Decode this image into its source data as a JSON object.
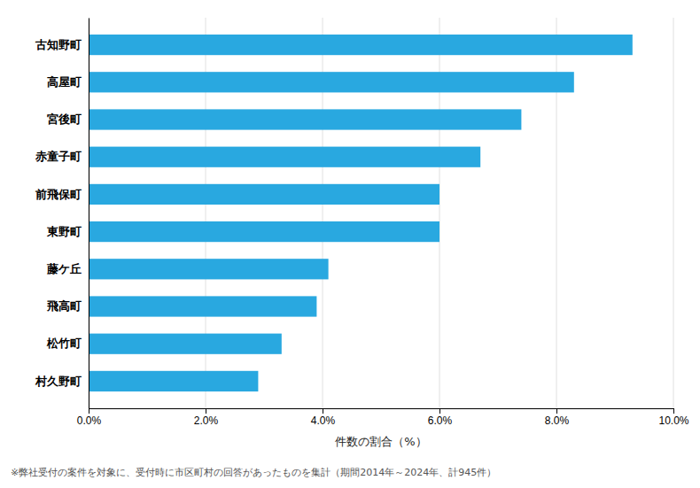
{
  "chart_data": {
    "type": "bar",
    "orientation": "horizontal",
    "categories": [
      "村久野町",
      "松竹町",
      "飛高町",
      "藤ケ丘",
      "東野町",
      "前飛保町",
      "赤童子町",
      "宮後町",
      "高屋町",
      "古知野町"
    ],
    "values": [
      2.9,
      3.3,
      3.9,
      4.1,
      6.0,
      6.0,
      6.7,
      7.4,
      8.3,
      9.3
    ],
    "color": "#29a8e0",
    "x_label": "件数の割合（%）",
    "xlim": [
      0,
      10.0
    ],
    "xticks": [
      {
        "value": 0,
        "label": "0.0%"
      },
      {
        "value": 2.0,
        "label": "2.0%"
      },
      {
        "value": 4.0,
        "label": "4.0%"
      },
      {
        "value": 6.0,
        "label": "6.0%"
      },
      {
        "value": 8.0,
        "label": "8.0%"
      },
      {
        "value": 10.0,
        "label": "10.0%"
      }
    ],
    "grid": true,
    "annotations": [
      "※弊社受付の案件を対象に、受付時に市区町村の回答があったものを集計（期間2014年～2024年、計945件）"
    ]
  }
}
